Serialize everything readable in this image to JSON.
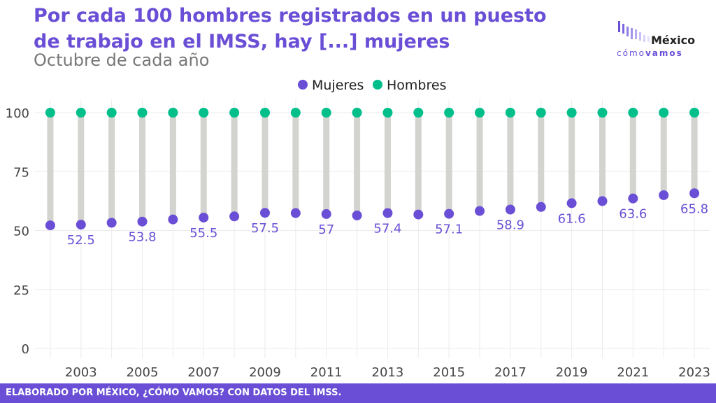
{
  "header": {
    "title": "Por cada 100 hombres registrados en un puesto de trabajo en el IMSS, hay [...] mujeres",
    "subtitle": "Octubre de cada año"
  },
  "logo": {
    "line1": "México",
    "line2a": "cómo",
    "line2b": "vamos"
  },
  "footer": {
    "text": "ELABORADO POR MÉXICO, ¿CÓMO VAMOS? CON DATOS DEL IMSS."
  },
  "colors": {
    "mujeres": "#6a4fd6",
    "hombres": "#00bf8a",
    "connector": "#d3d3cf",
    "grid": "#ebebeb",
    "accent": "#6a4fd6"
  },
  "chart_data": {
    "type": "dumbbell",
    "x": [
      2002,
      2003,
      2004,
      2005,
      2006,
      2007,
      2008,
      2009,
      2010,
      2011,
      2012,
      2013,
      2014,
      2015,
      2016,
      2017,
      2018,
      2019,
      2020,
      2021,
      2022,
      2023
    ],
    "series": [
      {
        "name": "Mujeres",
        "values": [
          52.2,
          52.5,
          53.3,
          53.8,
          54.7,
          55.5,
          56.0,
          57.5,
          57.4,
          57.0,
          56.4,
          57.4,
          56.8,
          57.1,
          58.3,
          58.9,
          60.0,
          61.6,
          62.5,
          63.6,
          65.0,
          65.8
        ]
      },
      {
        "name": "Hombres",
        "values": [
          100,
          100,
          100,
          100,
          100,
          100,
          100,
          100,
          100,
          100,
          100,
          100,
          100,
          100,
          100,
          100,
          100,
          100,
          100,
          100,
          100,
          100
        ]
      }
    ],
    "data_labels": [
      {
        "x": 2003,
        "label": "52.5"
      },
      {
        "x": 2005,
        "label": "53.8"
      },
      {
        "x": 2007,
        "label": "55.5"
      },
      {
        "x": 2009,
        "label": "57.5"
      },
      {
        "x": 2011,
        "label": "57"
      },
      {
        "x": 2013,
        "label": "57.4"
      },
      {
        "x": 2015,
        "label": "57.1"
      },
      {
        "x": 2017,
        "label": "58.9"
      },
      {
        "x": 2019,
        "label": "61.6"
      },
      {
        "x": 2021,
        "label": "63.6"
      },
      {
        "x": 2023,
        "label": "65.8"
      }
    ],
    "x_ticks": [
      2003,
      2005,
      2007,
      2009,
      2011,
      2013,
      2015,
      2017,
      2019,
      2021,
      2023
    ],
    "y_ticks": [
      0,
      25,
      50,
      75,
      100
    ],
    "ylim": [
      0,
      100
    ],
    "xlim": [
      2001.5,
      2023.5
    ],
    "legend": {
      "position": "top",
      "entries": [
        "Mujeres",
        "Hombres"
      ]
    },
    "grid": true
  }
}
